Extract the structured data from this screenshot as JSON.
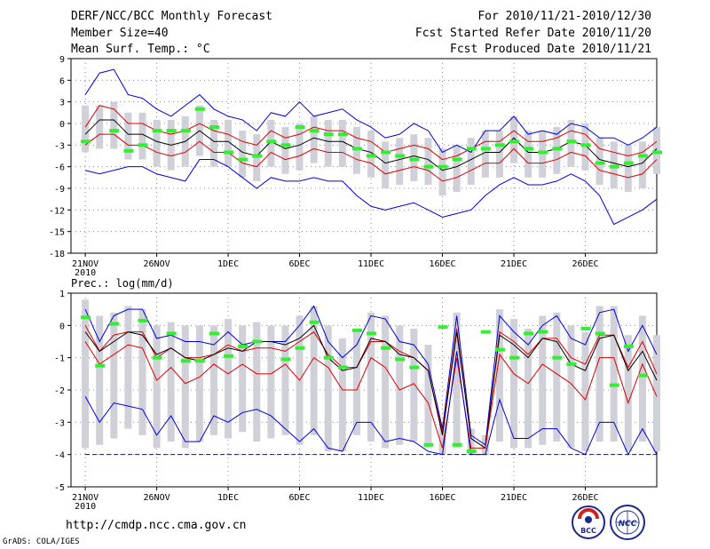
{
  "header": {
    "title": "DERF/NCC/BCC Monthly Forecast",
    "member_size": "Member Size=40",
    "variable": "Mean Surf. Temp.: °C",
    "period": "For 2010/11/21-2010/12/30",
    "fcst_started": "Fcst Started Refer Date 2010/11/20",
    "fcst_produced": "Fcst Produced Date 2010/11/21"
  },
  "footer": {
    "url": "http://cmdp.ncc.cma.gov.cn",
    "grads": "GrADS: COLA/IGES",
    "logo_bcc": "BCC",
    "logo_ncc": "NCC"
  },
  "colors": {
    "mean": "#000000",
    "band": "#dd0000",
    "envelope": "#0000dd",
    "box": "#d0d0d8",
    "obs": "#33ee33",
    "dashed": "#0000ff"
  },
  "chart_data": [
    {
      "type": "line",
      "title": "Mean Surf. Temp.: °C",
      "x_tick_labels": [
        "21NOV",
        "26NOV",
        "1DEC",
        "6DEC",
        "11DEC",
        "16DEC",
        "21DEC",
        "26DEC"
      ],
      "x_tick_days": [
        0,
        5,
        10,
        15,
        20,
        25,
        30,
        35
      ],
      "x_sublabel": "2010",
      "xlim": [
        -1,
        40
      ],
      "ylim": [
        -18,
        9
      ],
      "yticks": [
        9,
        6,
        3,
        0,
        -3,
        -6,
        -9,
        -12,
        -15,
        -18
      ],
      "series": [
        {
          "name": "max",
          "values": [
            4,
            7,
            7.5,
            4,
            3.5,
            2,
            1,
            2.5,
            4,
            2,
            1,
            0.5,
            -1,
            1.5,
            1,
            3,
            1,
            1.5,
            2,
            0.5,
            -0.5,
            -2,
            -1.5,
            0,
            -1,
            -4,
            -3,
            -4,
            -1,
            -1,
            1,
            -1.5,
            -1,
            -1.5,
            0,
            -0.5,
            -2,
            -2,
            -3,
            -2,
            -0.5
          ]
        },
        {
          "name": "upper",
          "values": [
            -0.5,
            2.5,
            2,
            0,
            0,
            -1,
            -1.5,
            -1,
            0,
            -1,
            -1.5,
            -2.5,
            -3,
            -1,
            -2,
            -1.5,
            -0.5,
            -1,
            -1,
            -2,
            -2.5,
            -4,
            -3.5,
            -3,
            -3.5,
            -5,
            -4.5,
            -3.5,
            -2.5,
            -2.5,
            -1,
            -2.5,
            -2.5,
            -2,
            -1,
            -1.5,
            -3.5,
            -4,
            -4.5,
            -4,
            -2.5
          ]
        },
        {
          "name": "mean",
          "values": [
            -1.5,
            0.5,
            0.5,
            -1.5,
            -1.5,
            -2.5,
            -3,
            -2.5,
            -1,
            -2.5,
            -2.5,
            -4,
            -4.5,
            -2.5,
            -3.5,
            -3,
            -2,
            -2.5,
            -2.5,
            -3.5,
            -4,
            -5.5,
            -5,
            -4.5,
            -5,
            -6.5,
            -6,
            -5,
            -4,
            -4,
            -2,
            -4,
            -4,
            -3.5,
            -2.5,
            -3,
            -5,
            -5.5,
            -6,
            -5.5,
            -3.5
          ]
        },
        {
          "name": "lower",
          "values": [
            -3,
            -1.5,
            -1.5,
            -3,
            -3,
            -4,
            -4.5,
            -4,
            -2.5,
            -4,
            -4,
            -5.5,
            -6,
            -4,
            -5,
            -4.5,
            -3.5,
            -4,
            -4,
            -5,
            -5.5,
            -7,
            -6.5,
            -6,
            -6.5,
            -8,
            -7.5,
            -6.5,
            -5.5,
            -5.5,
            -3.5,
            -5.5,
            -5.5,
            -5,
            -4,
            -4.5,
            -6.5,
            -7,
            -7.5,
            -7,
            -5
          ]
        },
        {
          "name": "min",
          "values": [
            -6.5,
            -7,
            -6.5,
            -6,
            -6,
            -7,
            -7.5,
            -8,
            -5,
            -5,
            -6,
            -7.5,
            -9,
            -7.5,
            -8,
            -8,
            -7.5,
            -8,
            -8,
            -10,
            -11.5,
            -12,
            -11.5,
            -11,
            -12,
            -13,
            -12.5,
            -12,
            -10,
            -8.5,
            -7.5,
            -8.5,
            -8.5,
            -8,
            -7,
            -8,
            -10,
            -14,
            -13,
            -12,
            -10.5
          ]
        },
        {
          "name": "obs",
          "values": [
            -2.5,
            null,
            -1,
            -3.8,
            -3,
            -1,
            -1,
            -1,
            2,
            -0.5,
            -4,
            -5,
            -4.5,
            -2.5,
            -3,
            -0.5,
            -1,
            -1.5,
            -1.5,
            -3.5,
            -4.5,
            -4,
            -4.5,
            -5,
            -6,
            -6,
            -5,
            -3.5,
            -3.5,
            -3,
            -2.5,
            -3.5,
            -4,
            -3.5,
            -2.5,
            -3,
            -5.5,
            -6,
            -5.5,
            -4.5,
            -4
          ]
        }
      ],
      "box_range": {
        "top": [
          2.5,
          2.5,
          3,
          1.5,
          1.5,
          0.5,
          0.5,
          1,
          2.5,
          0.5,
          0.5,
          -1,
          -1.5,
          0.5,
          -0.5,
          0,
          1,
          0.5,
          0.5,
          -0.5,
          -1,
          -2.5,
          -2,
          -1.5,
          -2,
          -3.5,
          -3,
          -2,
          -1,
          -1,
          1,
          -1,
          -1,
          -0.5,
          0.5,
          0,
          -2,
          -2.5,
          -3,
          -2.5,
          -0.5
        ],
        "bottom": [
          -4,
          -3.5,
          -3.5,
          -5,
          -5,
          -6,
          -6.5,
          -6,
          -4.5,
          -6,
          -6,
          -7.5,
          -8,
          -6,
          -7,
          -6.5,
          -5.5,
          -6,
          -6,
          -7,
          -7.5,
          -9,
          -8.5,
          -8,
          -8.5,
          -10,
          -9.5,
          -8.5,
          -7.5,
          -7.5,
          -5.5,
          -7.5,
          -7.5,
          -7,
          -6,
          -6.5,
          -8.5,
          -9,
          -9.5,
          -9,
          -7
        ]
      }
    },
    {
      "type": "line",
      "title": "Prec.: log(mm/d)",
      "x_tick_labels": [
        "21NOV",
        "26NOV",
        "1DEC",
        "6DEC",
        "11DEC",
        "16DEC",
        "21DEC",
        "26DEC"
      ],
      "x_tick_days": [
        0,
        5,
        10,
        15,
        20,
        25,
        30,
        35
      ],
      "x_sublabel": "2010",
      "xlim": [
        -1,
        40
      ],
      "ylim": [
        -5,
        1
      ],
      "yticks": [
        1,
        0,
        -1,
        -2,
        -3,
        -4,
        -5
      ],
      "floor_line": -4,
      "series": [
        {
          "name": "max",
          "values": [
            0.5,
            -0.5,
            0.3,
            0.5,
            0.5,
            -0.4,
            -0.3,
            -0.5,
            -0.5,
            -0.6,
            -0.2,
            -0.6,
            -0.5,
            -0.5,
            -0.5,
            0,
            0.6,
            -0.5,
            -1,
            -0.6,
            0.3,
            0.2,
            -0.5,
            -0.6,
            -1.2,
            -3.2,
            0.3,
            -3.4,
            -3.7,
            0.3,
            -0.2,
            -0.6,
            0,
            0.3,
            -0.4,
            -0.6,
            0.4,
            0.5,
            -0.8,
            0,
            -0.9
          ]
        },
        {
          "name": "upper",
          "values": [
            0,
            -0.8,
            -0.3,
            -0.2,
            -0.2,
            -1,
            -0.7,
            -1,
            -1,
            -0.9,
            -0.6,
            -0.8,
            -0.7,
            -0.7,
            -0.8,
            -0.5,
            -0.2,
            -0.9,
            -1.3,
            -1.3,
            -0.5,
            -0.5,
            -0.8,
            -1,
            -1.4,
            -3.3,
            -0.1,
            -3.5,
            -3.8,
            -0.2,
            -0.5,
            -0.9,
            -0.4,
            -0.4,
            -1,
            -1.2,
            -0.3,
            -0.3,
            -1.3,
            -0.5,
            -1.5
          ]
        },
        {
          "name": "mean",
          "values": [
            -0.2,
            -0.8,
            -0.5,
            -0.2,
            -0.3,
            -0.9,
            -0.7,
            -1,
            -1.1,
            -0.9,
            -0.7,
            -0.8,
            -0.5,
            -0.5,
            -0.6,
            -0.4,
            0,
            -1,
            -1.4,
            -1.3,
            -0.4,
            -0.5,
            -0.9,
            -1,
            -1.4,
            -3.4,
            -0.2,
            -3.5,
            -3.8,
            -0.3,
            -0.6,
            -1,
            -0.4,
            -0.5,
            -1.2,
            -1.4,
            -0.4,
            -0.3,
            -1.4,
            -0.8,
            -1.7
          ]
        },
        {
          "name": "lower",
          "values": [
            -0.5,
            -1.2,
            -0.9,
            -0.6,
            -0.7,
            -1.7,
            -1.3,
            -1.8,
            -1.6,
            -1.2,
            -1.5,
            -1.2,
            -1.5,
            -1.5,
            -1.2,
            -1.7,
            -1,
            -1.3,
            -2,
            -2,
            -1,
            -1.3,
            -2,
            -1.8,
            -2.4,
            -3.8,
            -1,
            -3.8,
            -3.8,
            -0.9,
            -1.5,
            -1.8,
            -1.2,
            -1.5,
            -1.8,
            -2.3,
            -1,
            -1,
            -2.4,
            -1.2,
            -2.2
          ]
        },
        {
          "name": "min",
          "values": [
            -2.2,
            -3,
            -2.4,
            -2.5,
            -2.6,
            -3.4,
            -2.8,
            -3.6,
            -3.6,
            -2.8,
            -3,
            -2.7,
            -2.6,
            -2.8,
            -3.2,
            -3.6,
            -3.2,
            -3.8,
            -3.9,
            -3,
            -3,
            -3.6,
            -3.5,
            -3.6,
            -3.9,
            -4,
            -0.8,
            -4,
            -4,
            -2.3,
            -3.5,
            -3.5,
            -3.2,
            -3.2,
            -3.8,
            -4,
            -3,
            -3,
            -4,
            -3.2,
            -4
          ]
        },
        {
          "name": "obs",
          "values": [
            0.25,
            -1.25,
            0.05,
            null,
            0.15,
            -1,
            -0.25,
            -1.1,
            -1.1,
            -0.25,
            -0.95,
            -0.65,
            -0.5,
            null,
            -1.05,
            -0.7,
            0.1,
            -1,
            -1.3,
            -0.15,
            -0.25,
            -0.7,
            -1.05,
            -1.3,
            -3.7,
            -0.05,
            -3.7,
            -3.9,
            -0.2,
            -0.75,
            -1,
            -0.25,
            -0.2,
            -1,
            -1.2,
            -0.1,
            -0.25,
            -1.85,
            -0.65,
            -1.55,
            null
          ]
        }
      ],
      "box_range": {
        "top": [
          0.8,
          0.3,
          0.4,
          0.6,
          0.5,
          0,
          0.1,
          0,
          0,
          0,
          0.2,
          0,
          0.1,
          0,
          0,
          0.3,
          0.6,
          0,
          -0.4,
          -0.1,
          0.4,
          0.3,
          0,
          -0.1,
          -0.6,
          -3,
          0.4,
          -3.2,
          -3.4,
          0.5,
          0.2,
          -0.1,
          0.3,
          0.4,
          0,
          -0.2,
          0.6,
          0.6,
          -0.3,
          0.3,
          -0.3
        ],
        "bottom": [
          -3.8,
          -3.7,
          -3.5,
          -3.2,
          -3.4,
          -3.8,
          -3.6,
          -3.8,
          -3.6,
          -3.4,
          -3.5,
          -3.3,
          -3.6,
          -3.5,
          -3.4,
          -3.7,
          -3.4,
          -3.9,
          -3.9,
          -3.4,
          -3.6,
          -3.8,
          -3.7,
          -3.6,
          -3.8,
          -4,
          -3.8,
          -4,
          -4,
          -3.6,
          -3.8,
          -3.8,
          -3.7,
          -3.6,
          -3.8,
          -3.9,
          -3.6,
          -3.6,
          -3.9,
          -3.6,
          -3.9
        ]
      }
    }
  ]
}
